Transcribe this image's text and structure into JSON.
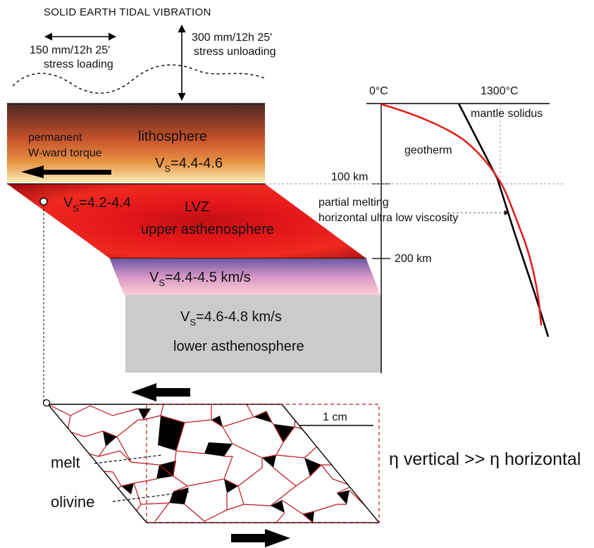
{
  "title": "SOLID EARTH TIDAL VIBRATION",
  "tide": {
    "loading_value": "150 mm/12h 25'",
    "loading_label": "stress loading",
    "unloading_value": "300 mm/12h 25'",
    "unloading_label": "stress unloading"
  },
  "lithosphere": {
    "name": "lithosphere",
    "vs_prefix": "V",
    "vs_sub": "S",
    "vs_value": "=4.4-4.6",
    "torque_line1": "permanent",
    "torque_line2": "W-ward torque"
  },
  "lvz": {
    "vs_prefix": "V",
    "vs_sub": "S",
    "vs_value": "=4.2-4.4",
    "name": "LVZ",
    "subname": "upper asthenosphere"
  },
  "mid_layer": {
    "vs_prefix": "V",
    "vs_sub": "S",
    "vs_value": "=4.4-4.5 km/s"
  },
  "lower_layer": {
    "vs_prefix": "V",
    "vs_sub": "S",
    "vs_value": "=4.6-4.8 km/s",
    "name": "lower asthenosphere"
  },
  "profile": {
    "temp_min": "0°C",
    "temp_max": "1300°C",
    "solidus_label": "mantle solidus",
    "geotherm_label": "geotherm",
    "depth_100": "100 km",
    "depth_200": "200 km",
    "melting_line1": "partial melting",
    "melting_line2": "horizontal ultra low viscosity",
    "colors": {
      "geotherm": "#e0201c",
      "solidus": "#000000"
    }
  },
  "microstructure": {
    "scale_label": "1 cm",
    "melt_label": "melt",
    "olivine_label": "olivine",
    "viscosity_eta": "η",
    "viscosity_text1": " vertical >> ",
    "viscosity_text2": " horizontal",
    "colors": {
      "grain_boundary": "#c0141c",
      "melt": "#000000"
    }
  },
  "colors": {
    "lithosphere_top": "#5a2a26",
    "lithosphere_mid": "#d7572a",
    "lithosphere_bottom": "#f5e3a8",
    "lvz": "#e01515",
    "lvz_dark": "#8a0f10",
    "mid_top": "#7c66b8",
    "mid_bottom": "#f8c6d0",
    "lower": "#cccccc"
  }
}
